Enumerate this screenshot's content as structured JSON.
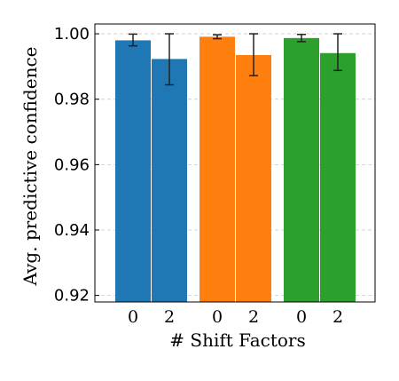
{
  "chart_data": {
    "type": "bar",
    "title": "",
    "xlabel": "# Shift Factors",
    "ylabel": "Avg. predictive confidence",
    "ylim": [
      0.918,
      1.003
    ],
    "yticks": [
      0.92,
      0.94,
      0.96,
      0.98,
      1.0
    ],
    "ytick_labels": [
      "0.92",
      "0.94",
      "0.96",
      "0.98",
      "1.00"
    ],
    "grid": "horizontal dashed",
    "legend": "none",
    "groups": [
      {
        "color": "#1f77b4",
        "bars": [
          {
            "category": "0",
            "value": 0.998,
            "err_low": 0.9963,
            "err_high": 0.9999
          },
          {
            "category": "2",
            "value": 0.9923,
            "err_low": 0.9844,
            "err_high": 1.0
          }
        ]
      },
      {
        "color": "#ff7f0e",
        "bars": [
          {
            "category": "0",
            "value": 0.9991,
            "err_low": 0.9985,
            "err_high": 0.9997
          },
          {
            "category": "2",
            "value": 0.9935,
            "err_low": 0.9872,
            "err_high": 1.0
          }
        ]
      },
      {
        "color": "#2ca02c",
        "bars": [
          {
            "category": "0",
            "value": 0.9987,
            "err_low": 0.9976,
            "err_high": 0.9998
          },
          {
            "category": "2",
            "value": 0.9941,
            "err_low": 0.9888,
            "err_high": 1.0
          }
        ]
      }
    ]
  }
}
